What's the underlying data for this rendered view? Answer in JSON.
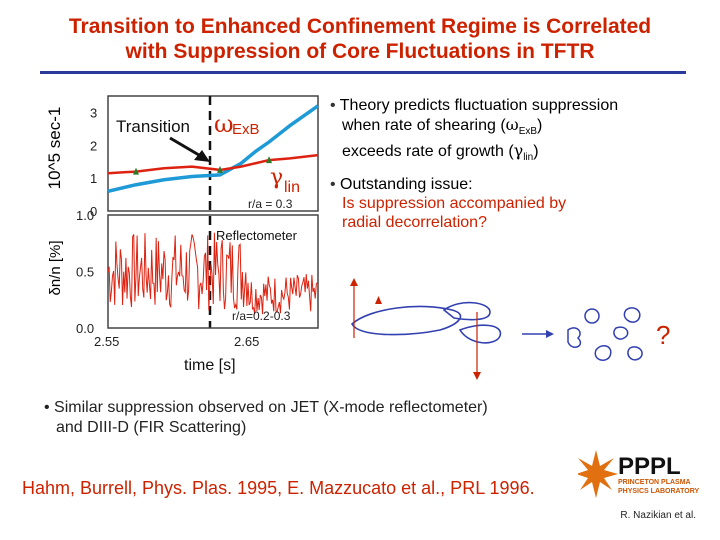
{
  "title": {
    "line1": "Transition to Enhanced Confinement Regime is Correlated",
    "line2": "with Suppression of Core Fluctuations in TFTR"
  },
  "colors": {
    "title": "#cc2200",
    "rule": "#2a3a9a",
    "exb": "#1e9ad6",
    "lin": "#dd2211",
    "arrow_blue": "#3340b0"
  },
  "chart_data": [
    {
      "type": "line",
      "title": "",
      "ylabel": "10^5 sec-1",
      "y_ticks": [
        "3",
        "2",
        "1",
        "0"
      ],
      "ylim": [
        0,
        3.5
      ],
      "xlim": [
        2.55,
        2.7
      ],
      "annotations": {
        "transition": "Transition",
        "radius": "r/a = 0.3"
      },
      "series": [
        {
          "name": "ωExB",
          "label_main": "ω",
          "label_sub": "ExB",
          "x": [
            2.55,
            2.57,
            2.59,
            2.61,
            2.63,
            2.645,
            2.655,
            2.665,
            2.68,
            2.7
          ],
          "values": [
            0.6,
            0.8,
            0.95,
            1.05,
            1.1,
            1.45,
            1.8,
            2.1,
            2.6,
            3.2
          ]
        },
        {
          "name": "γlin",
          "label_main": "γ",
          "label_sub": "lin",
          "x": [
            2.55,
            2.57,
            2.59,
            2.61,
            2.63,
            2.645,
            2.655,
            2.665,
            2.68,
            2.7
          ],
          "values": [
            1.15,
            1.2,
            1.3,
            1.35,
            1.25,
            1.35,
            1.45,
            1.55,
            1.6,
            1.7
          ]
        }
      ]
    },
    {
      "type": "line",
      "title": "",
      "ylabel": "δn/n [%]",
      "xlabel": "time [s]",
      "y_ticks": [
        "1.0",
        "0.5",
        "0.0"
      ],
      "x_ticks": [
        "2.55",
        "2.65"
      ],
      "ylim": [
        0,
        1.0
      ],
      "xlim": [
        2.55,
        2.7
      ],
      "annotations": {
        "instrument": "Reflectometer",
        "radius": "r/a=0.2-0.3"
      },
      "series": [
        {
          "name": "Reflectometer fluctuation",
          "mean_before": 0.5,
          "mean_after": 0.3
        }
      ]
    }
  ],
  "bullets_right": [
    {
      "line1": "Theory predicts fluctuation suppression",
      "line2a": "when rate of shearing (",
      "line2_sym": "ω",
      "line2_sub": "ExB",
      "line2b": ")",
      "line3a": "exceeds rate of growth (",
      "line3_sym": "γ",
      "line3_sub": "lin",
      "line3b": ")"
    },
    {
      "line1": "Outstanding issue:",
      "red1": "Is suppression accompanied by",
      "red2": "radial decorrelation?"
    }
  ],
  "question_mark": "?",
  "bullet_bottom": {
    "line1": "Similar suppression observed on JET (X-mode reflectometer)",
    "line2": "and DIII-D (FIR Scattering)"
  },
  "reference": "Hahm, Burrell, Phys. Plas. 1995, E. Mazzucato et al., PRL 1996.",
  "logo": {
    "main": "PPPL",
    "sub1": "PRINCETON PLASMA",
    "sub2": "PHYSICS LABORATORY"
  },
  "credit": "R. Nazikian et al."
}
